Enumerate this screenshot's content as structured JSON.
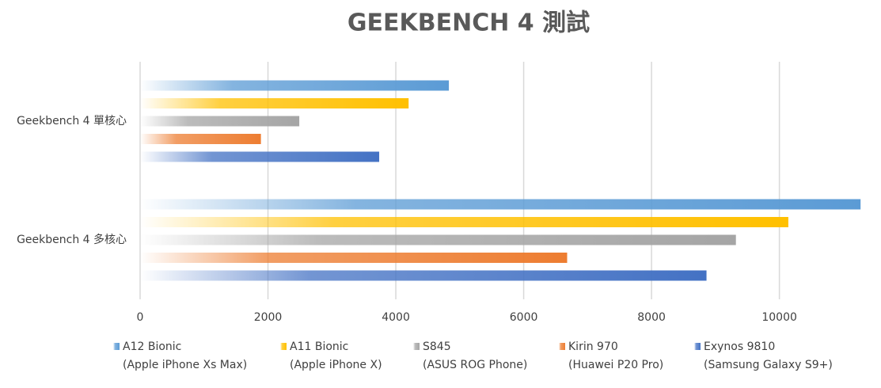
{
  "chart_data": {
    "type": "bar",
    "orientation": "horizontal",
    "title": "GEEKBENCH 4 測試",
    "categories": [
      "Geekbench 4 單核心",
      "Geekbench 4 多核心"
    ],
    "series": [
      {
        "name": "A12 Bionic",
        "device": "(Apple iPhone Xs Max)",
        "color": "#5b9bd5",
        "values": [
          4830,
          11270
        ]
      },
      {
        "name": "A11 Bionic",
        "device": "(Apple iPhone X)",
        "color": "#ffc000",
        "values": [
          4200,
          10140
        ]
      },
      {
        "name": "S845",
        "device": "(ASUS ROG Phone)",
        "color": "#a5a5a5",
        "values": [
          2490,
          9320
        ]
      },
      {
        "name": "Kirin 970",
        "device": "(Huawei P20 Pro)",
        "color": "#ed7d31",
        "values": [
          1890,
          6680
        ]
      },
      {
        "name": "Exynos 9810",
        "device": "(Samsung Galaxy S9+)",
        "color": "#4472c4",
        "values": [
          3740,
          8860
        ]
      }
    ],
    "xlim": [
      0,
      11280
    ],
    "xticks": [
      0,
      2000,
      4000,
      6000,
      8000,
      10000
    ],
    "grid": true,
    "legend": "bottom"
  }
}
